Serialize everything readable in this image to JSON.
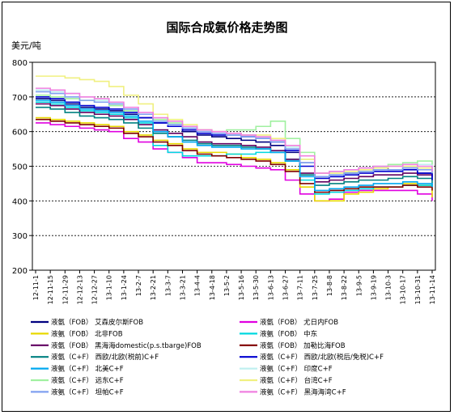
{
  "chart_data": {
    "type": "line",
    "title": "国际合成氨价格走势图",
    "ylabel": "美元/吨",
    "ylim": [
      200,
      800
    ],
    "yticks": [
      200,
      300,
      400,
      500,
      600,
      700,
      800
    ],
    "grid": "horizontal dashed",
    "legend_placement": "bottom",
    "x": [
      "12-11-1",
      "12-11-15",
      "12-11-29",
      "12-12-13",
      "12-12-27",
      "13-1-10",
      "13-1-24",
      "13-2-7",
      "13-2-21",
      "13-3-7",
      "13-3-21",
      "13-4-4",
      "13-4-18",
      "13-5-2",
      "13-5-16",
      "13-5-30",
      "13-6-13",
      "13-6-27",
      "13-7-11",
      "13-7-25",
      "13-8-8",
      "13-8-22",
      "13-9-5",
      "13-9-19",
      "13-10-3",
      "13-10-17",
      "13-10-31",
      "13-11-14"
    ],
    "series": [
      {
        "name": "液氨（FOB） 艾森皮尔斯FOB",
        "color": "#000080",
        "values": [
          695,
          690,
          680,
          670,
          665,
          660,
          650,
          640,
          625,
          615,
          600,
          590,
          585,
          580,
          575,
          570,
          560,
          540,
          510,
          470,
          470,
          480,
          495,
          495,
          490,
          495,
          480,
          470
        ]
      },
      {
        "name": "液氨（FOB） 尤日内FOB",
        "color": "#e000e0",
        "values": [
          625,
          620,
          615,
          610,
          605,
          600,
          580,
          570,
          550,
          540,
          525,
          510,
          510,
          505,
          500,
          495,
          490,
          460,
          420,
          400,
          405,
          425,
          430,
          430,
          430,
          430,
          420,
          400
        ]
      },
      {
        "name": "液氨（FOB） 北非FOB",
        "color": "#e8d800",
        "values": [
          640,
          635,
          630,
          625,
          620,
          615,
          600,
          590,
          575,
          565,
          550,
          540,
          540,
          535,
          525,
          520,
          510,
          490,
          440,
          400,
          400,
          420,
          425,
          435,
          440,
          450,
          445,
          410
        ]
      },
      {
        "name": "液氨（FOB） 中东",
        "color": "#00d8e0",
        "values": [
          685,
          680,
          670,
          660,
          655,
          650,
          640,
          625,
          560,
          540,
          530,
          530,
          530,
          535,
          535,
          540,
          540,
          520,
          460,
          420,
          425,
          430,
          435,
          440,
          440,
          445,
          445,
          440
        ]
      },
      {
        "name": "液氨（FOB） 黑海海domestic(p.s.tbarge)FOB",
        "color": "#600060",
        "values": [
          680,
          675,
          665,
          655,
          650,
          645,
          635,
          620,
          605,
          595,
          585,
          570,
          565,
          565,
          560,
          555,
          545,
          520,
          480,
          455,
          460,
          465,
          470,
          475,
          475,
          480,
          475,
          460
        ]
      },
      {
        "name": "液氨（FOB） 加勒比海FOB",
        "color": "#800000",
        "values": [
          635,
          630,
          625,
          620,
          615,
          610,
          595,
          585,
          570,
          560,
          545,
          535,
          530,
          525,
          520,
          515,
          505,
          485,
          450,
          425,
          430,
          435,
          440,
          440,
          440,
          445,
          440,
          430
        ]
      },
      {
        "name": "液氨（C+F） 西欧/北欧(税前)C+F",
        "color": "#008080",
        "values": [
          670,
          665,
          655,
          645,
          640,
          635,
          625,
          610,
          595,
          585,
          575,
          565,
          560,
          560,
          555,
          550,
          540,
          515,
          475,
          445,
          450,
          455,
          460,
          460,
          465,
          470,
          465,
          445
        ]
      },
      {
        "name": "液氨（C+F） 西欧/北欧(税后/免税)C+F",
        "color": "#0000d0",
        "values": [
          700,
          695,
          685,
          675,
          670,
          665,
          655,
          640,
          625,
          615,
          605,
          595,
          590,
          590,
          585,
          580,
          570,
          545,
          500,
          465,
          470,
          475,
          480,
          485,
          485,
          490,
          480,
          460
        ]
      },
      {
        "name": "液氨（C+F） 北美C+F",
        "color": "#00a8f0",
        "values": [
          690,
          685,
          675,
          665,
          660,
          655,
          645,
          630,
          600,
          585,
          570,
          560,
          555,
          555,
          550,
          550,
          540,
          515,
          470,
          430,
          435,
          440,
          445,
          450,
          450,
          455,
          450,
          440
        ]
      },
      {
        "name": "液氨（C+F） 印度C+F",
        "color": "#c0f0f0",
        "values": [
          720,
          715,
          710,
          700,
          690,
          680,
          665,
          650,
          630,
          620,
          610,
          600,
          595,
          590,
          590,
          585,
          575,
          555,
          520,
          480,
          485,
          490,
          495,
          500,
          505,
          510,
          505,
          495
        ]
      },
      {
        "name": "液氨（C+F） 远东C+F",
        "color": "#a0f0a0",
        "values": [
          705,
          700,
          695,
          690,
          685,
          675,
          660,
          650,
          635,
          625,
          615,
          605,
          600,
          605,
          605,
          615,
          630,
          580,
          540,
          470,
          475,
          480,
          485,
          495,
          505,
          510,
          515,
          505
        ]
      },
      {
        "name": "液氨（C+F） 台湾C+F",
        "color": "#f0f080",
        "values": [
          760,
          760,
          755,
          750,
          745,
          730,
          705,
          680,
          650,
          635,
          620,
          605,
          600,
          595,
          590,
          590,
          580,
          560,
          520,
          480,
          480,
          485,
          490,
          495,
          500,
          500,
          495,
          480
        ]
      },
      {
        "name": "液氨（C+F） 坦帕C+F",
        "color": "#80a0f0",
        "values": [
          715,
          710,
          700,
          690,
          685,
          680,
          665,
          650,
          630,
          620,
          610,
          600,
          595,
          590,
          585,
          580,
          570,
          550,
          510,
          470,
          475,
          480,
          485,
          490,
          490,
          495,
          490,
          480
        ]
      },
      {
        "name": "液氨（C+F） 黑海海湾C+F",
        "color": "#f080e0",
        "values": [
          725,
          720,
          710,
          700,
          695,
          685,
          670,
          655,
          640,
          630,
          615,
          605,
          600,
          595,
          590,
          585,
          575,
          560,
          530,
          480,
          485,
          490,
          495,
          500,
          500,
          505,
          500,
          485
        ]
      }
    ]
  }
}
